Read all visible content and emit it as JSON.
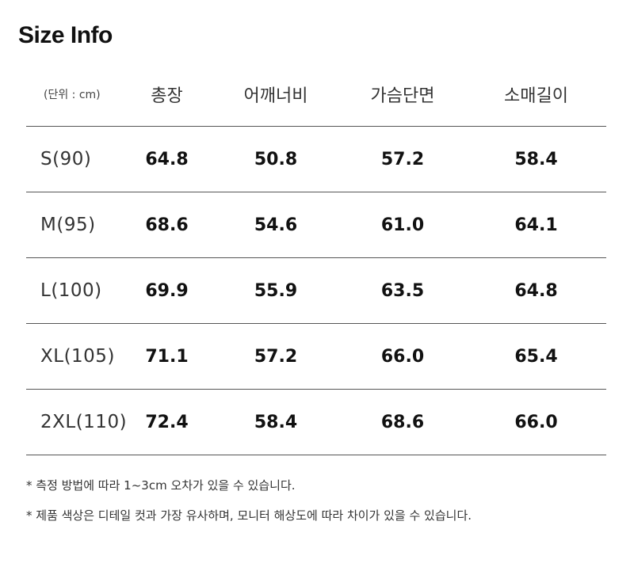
{
  "title": "Size Info",
  "table": {
    "unit_label": "(단위 : cm)",
    "columns": [
      "총장",
      "어깨너비",
      "가슴단면",
      "소매길이"
    ],
    "rows": [
      {
        "size": "S(90)",
        "values": [
          "64.8",
          "50.8",
          "57.2",
          "58.4"
        ]
      },
      {
        "size": "M(95)",
        "values": [
          "68.6",
          "54.6",
          "61.0",
          "64.1"
        ]
      },
      {
        "size": "L(100)",
        "values": [
          "69.9",
          "55.9",
          "63.5",
          "64.8"
        ]
      },
      {
        "size": "XL(105)",
        "values": [
          "71.1",
          "57.2",
          "66.0",
          "65.4"
        ]
      },
      {
        "size": "2XL(110)",
        "values": [
          "72.4",
          "58.4",
          "68.6",
          "66.0"
        ]
      }
    ]
  },
  "notes": [
    "* 측정 방법에 따라 1~3cm 오차가 있을 수 있습니다.",
    "* 제품 색상은 디테일 컷과 가장 유사하며, 모니터 해상도에 따라 차이가 있을 수 있습니다."
  ]
}
